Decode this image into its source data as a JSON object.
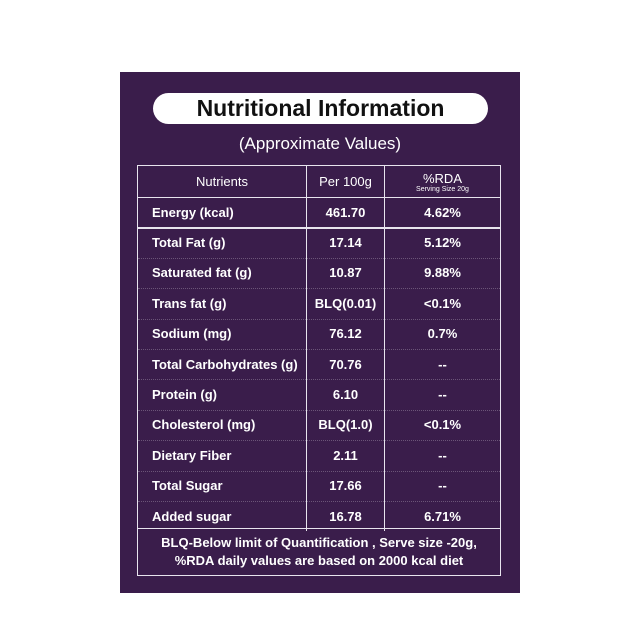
{
  "header": {
    "title": "Nutritional Information",
    "subtitle": "(Approximate Values)"
  },
  "table": {
    "columns": [
      "Nutrients",
      "Per 100g",
      "%RDA"
    ],
    "rda_note": "Serving Size 20g",
    "rows": [
      [
        "Energy (kcal)",
        "461.70",
        "4.62%"
      ],
      [
        "Total Fat (g)",
        "17.14",
        "5.12%"
      ],
      [
        "Saturated fat (g)",
        "10.87",
        "9.88%"
      ],
      [
        "Trans fat (g)",
        "BLQ(0.01)",
        "<0.1%"
      ],
      [
        "Sodium (mg)",
        "76.12",
        "0.7%"
      ],
      [
        "Total Carbohydrates (g)",
        "70.76",
        "--"
      ],
      [
        "Protein (g)",
        "6.10",
        "--"
      ],
      [
        "Cholesterol (mg)",
        "BLQ(1.0)",
        "<0.1%"
      ],
      [
        "Dietary Fiber",
        "2.11",
        "--"
      ],
      [
        "Total Sugar",
        "17.66",
        "--"
      ],
      [
        "Added sugar",
        "16.78",
        "6.71%"
      ]
    ]
  },
  "footer": {
    "lines": [
      "BLQ-Below limit of Quantification , Serve size -20g,",
      "%RDA daily values are based on 2000 kcal diet"
    ]
  }
}
